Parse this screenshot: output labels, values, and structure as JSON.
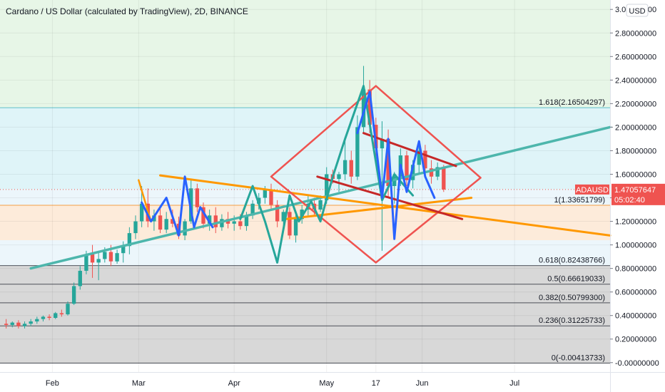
{
  "header": {
    "title": "Cardano / US Dollar (calculated by TradingView), 2D, BINANCE"
  },
  "price_scale": {
    "currency": "USD",
    "symbol": "ADAUSD",
    "last_price": "1.47057647",
    "countdown": "05:02:40",
    "last_price_value": 1.4706
  },
  "colors": {
    "up": "#26a69a",
    "down": "#ef5350",
    "blue_wave": "#2962ff",
    "teal_line": "#4db6ac",
    "orange_line": "#ff9800",
    "red_shape": "#ef5350",
    "zone_green": "#e3f4e3",
    "zone_cyan": "#d9f2f7",
    "zone_orange": "#fde7d4",
    "zone_light": "#e9f5fa",
    "zone_gray": "#d1d1d1"
  },
  "fib_levels": [
    {
      "label": "1.618(2.16504297)",
      "value": 2.165,
      "color": "#26a7b8"
    },
    {
      "label": "1(1.33651799)",
      "value": 1.3365,
      "color": "#f57c00"
    },
    {
      "label": "0.618(0.82438766)",
      "value": 0.8244,
      "color": "#131722"
    },
    {
      "label": "0.5(0.66619033)",
      "value": 0.6662,
      "color": "#131722"
    },
    {
      "label": "0.382(0.50799300)",
      "value": 0.508,
      "color": "#131722"
    },
    {
      "label": "0.236(0.31225733)",
      "value": 0.3123,
      "color": "#131722"
    },
    {
      "label": "0(-0.00413733)",
      "value": -0.0041,
      "color": "#131722"
    }
  ],
  "chart_data": {
    "type": "candlestick",
    "title": "Cardano / US Dollar (calculated by TradingView), 2D, BINANCE",
    "x_unit": "day-of-year 2021",
    "xlim": [
      15,
      213
    ],
    "ylim": [
      -0.08,
      3.08
    ],
    "y_ticks": [
      "3.00000000",
      "2.80000000",
      "2.60000000",
      "2.40000000",
      "2.20000000",
      "2.00000000",
      "1.80000000",
      "1.60000000",
      "1.40000000",
      "1.20000000",
      "1.00000000",
      "0.80000000",
      "0.60000000",
      "0.40000000",
      "0.20000000",
      "-0.00000000"
    ],
    "y_tick_values": [
      3.0,
      2.8,
      2.6,
      2.4,
      2.2,
      2.0,
      1.8,
      1.6,
      1.4,
      1.2,
      1.0,
      0.8,
      0.6,
      0.4,
      0.2,
      0.0
    ],
    "x_ticks": [
      {
        "label": "Feb",
        "x": 32
      },
      {
        "label": "Mar",
        "x": 60
      },
      {
        "label": "Apr",
        "x": 91
      },
      {
        "label": "May",
        "x": 121
      },
      {
        "label": "17",
        "x": 137
      },
      {
        "label": "Jun",
        "x": 152
      },
      {
        "label": "Jul",
        "x": 182
      }
    ],
    "candles": [
      {
        "x": 17,
        "o": 0.33,
        "h": 0.37,
        "l": 0.29,
        "c": 0.32
      },
      {
        "x": 19,
        "o": 0.32,
        "h": 0.35,
        "l": 0.3,
        "c": 0.34
      },
      {
        "x": 21,
        "o": 0.34,
        "h": 0.36,
        "l": 0.29,
        "c": 0.31
      },
      {
        "x": 23,
        "o": 0.31,
        "h": 0.35,
        "l": 0.29,
        "c": 0.33
      },
      {
        "x": 25,
        "o": 0.33,
        "h": 0.37,
        "l": 0.31,
        "c": 0.35
      },
      {
        "x": 27,
        "o": 0.35,
        "h": 0.39,
        "l": 0.33,
        "c": 0.37
      },
      {
        "x": 29,
        "o": 0.37,
        "h": 0.4,
        "l": 0.35,
        "c": 0.39
      },
      {
        "x": 31,
        "o": 0.39,
        "h": 0.41,
        "l": 0.36,
        "c": 0.38
      },
      {
        "x": 33,
        "o": 0.38,
        "h": 0.43,
        "l": 0.37,
        "c": 0.42
      },
      {
        "x": 35,
        "o": 0.42,
        "h": 0.45,
        "l": 0.39,
        "c": 0.41
      },
      {
        "x": 37,
        "o": 0.41,
        "h": 0.52,
        "l": 0.4,
        "c": 0.5
      },
      {
        "x": 39,
        "o": 0.5,
        "h": 0.68,
        "l": 0.49,
        "c": 0.65
      },
      {
        "x": 41,
        "o": 0.65,
        "h": 0.82,
        "l": 0.62,
        "c": 0.78
      },
      {
        "x": 43,
        "o": 0.78,
        "h": 0.95,
        "l": 0.75,
        "c": 0.92
      },
      {
        "x": 45,
        "o": 0.92,
        "h": 1.0,
        "l": 0.72,
        "c": 0.85
      },
      {
        "x": 47,
        "o": 0.85,
        "h": 0.95,
        "l": 0.7,
        "c": 0.88
      },
      {
        "x": 49,
        "o": 0.88,
        "h": 0.98,
        "l": 0.85,
        "c": 0.94
      },
      {
        "x": 51,
        "o": 0.94,
        "h": 1.0,
        "l": 0.82,
        "c": 0.86
      },
      {
        "x": 53,
        "o": 0.86,
        "h": 0.96,
        "l": 0.84,
        "c": 0.93
      },
      {
        "x": 55,
        "o": 0.93,
        "h": 1.03,
        "l": 0.85,
        "c": 0.99
      },
      {
        "x": 57,
        "o": 0.99,
        "h": 1.15,
        "l": 0.92,
        "c": 1.1
      },
      {
        "x": 59,
        "o": 1.1,
        "h": 1.25,
        "l": 1.05,
        "c": 1.2
      },
      {
        "x": 61,
        "o": 1.2,
        "h": 1.5,
        "l": 1.15,
        "c": 1.35
      },
      {
        "x": 63,
        "o": 1.35,
        "h": 1.48,
        "l": 1.15,
        "c": 1.2
      },
      {
        "x": 65,
        "o": 1.2,
        "h": 1.3,
        "l": 1.12,
        "c": 1.25
      },
      {
        "x": 67,
        "o": 1.25,
        "h": 1.32,
        "l": 1.1,
        "c": 1.13
      },
      {
        "x": 69,
        "o": 1.13,
        "h": 1.28,
        "l": 1.1,
        "c": 1.22
      },
      {
        "x": 71,
        "o": 1.22,
        "h": 1.3,
        "l": 1.15,
        "c": 1.18
      },
      {
        "x": 73,
        "o": 1.18,
        "h": 1.24,
        "l": 1.05,
        "c": 1.08
      },
      {
        "x": 75,
        "o": 1.08,
        "h": 1.22,
        "l": 1.04,
        "c": 1.2
      },
      {
        "x": 77,
        "o": 1.2,
        "h": 1.56,
        "l": 1.18,
        "c": 1.48
      },
      {
        "x": 79,
        "o": 1.48,
        "h": 1.52,
        "l": 1.28,
        "c": 1.32
      },
      {
        "x": 81,
        "o": 1.32,
        "h": 1.36,
        "l": 1.14,
        "c": 1.18
      },
      {
        "x": 83,
        "o": 1.18,
        "h": 1.3,
        "l": 1.12,
        "c": 1.25
      },
      {
        "x": 85,
        "o": 1.25,
        "h": 1.32,
        "l": 1.1,
        "c": 1.15
      },
      {
        "x": 87,
        "o": 1.15,
        "h": 1.26,
        "l": 1.12,
        "c": 1.22
      },
      {
        "x": 89,
        "o": 1.22,
        "h": 1.28,
        "l": 1.14,
        "c": 1.18
      },
      {
        "x": 91,
        "o": 1.18,
        "h": 1.25,
        "l": 1.12,
        "c": 1.2
      },
      {
        "x": 93,
        "o": 1.2,
        "h": 1.26,
        "l": 1.13,
        "c": 1.16
      },
      {
        "x": 95,
        "o": 1.16,
        "h": 1.28,
        "l": 1.12,
        "c": 1.25
      },
      {
        "x": 97,
        "o": 1.25,
        "h": 1.38,
        "l": 1.22,
        "c": 1.35
      },
      {
        "x": 99,
        "o": 1.35,
        "h": 1.44,
        "l": 1.3,
        "c": 1.4
      },
      {
        "x": 101,
        "o": 1.4,
        "h": 1.5,
        "l": 1.35,
        "c": 1.47
      },
      {
        "x": 103,
        "o": 1.47,
        "h": 1.52,
        "l": 1.3,
        "c": 1.34
      },
      {
        "x": 105,
        "o": 1.34,
        "h": 1.38,
        "l": 1.15,
        "c": 1.2
      },
      {
        "x": 107,
        "o": 1.2,
        "h": 1.3,
        "l": 1.12,
        "c": 1.28
      },
      {
        "x": 109,
        "o": 1.28,
        "h": 1.32,
        "l": 1.05,
        "c": 1.08
      },
      {
        "x": 111,
        "o": 1.08,
        "h": 1.28,
        "l": 1.02,
        "c": 1.22
      },
      {
        "x": 113,
        "o": 1.22,
        "h": 1.34,
        "l": 1.18,
        "c": 1.3
      },
      {
        "x": 115,
        "o": 1.3,
        "h": 1.42,
        "l": 1.25,
        "c": 1.35
      },
      {
        "x": 117,
        "o": 1.35,
        "h": 1.4,
        "l": 1.25,
        "c": 1.3
      },
      {
        "x": 119,
        "o": 1.3,
        "h": 1.42,
        "l": 1.28,
        "c": 1.38
      },
      {
        "x": 121,
        "o": 1.38,
        "h": 1.66,
        "l": 1.35,
        "c": 1.6
      },
      {
        "x": 123,
        "o": 1.6,
        "h": 1.64,
        "l": 1.52,
        "c": 1.56
      },
      {
        "x": 125,
        "o": 1.56,
        "h": 1.62,
        "l": 1.45,
        "c": 1.6
      },
      {
        "x": 127,
        "o": 1.6,
        "h": 1.9,
        "l": 1.55,
        "c": 1.72
      },
      {
        "x": 129,
        "o": 1.72,
        "h": 1.8,
        "l": 1.52,
        "c": 1.58
      },
      {
        "x": 131,
        "o": 1.58,
        "h": 2.1,
        "l": 1.55,
        "c": 2.0
      },
      {
        "x": 133,
        "o": 2.0,
        "h": 2.52,
        "l": 1.95,
        "c": 2.32
      },
      {
        "x": 135,
        "o": 2.32,
        "h": 2.4,
        "l": 1.95,
        "c": 2.02
      },
      {
        "x": 137,
        "o": 2.02,
        "h": 2.08,
        "l": 1.72,
        "c": 1.82
      },
      {
        "x": 139,
        "o": 1.82,
        "h": 2.05,
        "l": 0.95,
        "c": 1.9
      },
      {
        "x": 141,
        "o": 1.9,
        "h": 1.98,
        "l": 1.4,
        "c": 1.5
      },
      {
        "x": 143,
        "o": 1.5,
        "h": 1.62,
        "l": 1.35,
        "c": 1.58
      },
      {
        "x": 145,
        "o": 1.58,
        "h": 1.82,
        "l": 1.5,
        "c": 1.76
      },
      {
        "x": 147,
        "o": 1.76,
        "h": 1.8,
        "l": 1.5,
        "c": 1.55
      },
      {
        "x": 149,
        "o": 1.55,
        "h": 1.72,
        "l": 1.48,
        "c": 1.68
      },
      {
        "x": 151,
        "o": 1.68,
        "h": 1.88,
        "l": 1.6,
        "c": 1.8
      },
      {
        "x": 153,
        "o": 1.8,
        "h": 1.85,
        "l": 1.6,
        "c": 1.65
      },
      {
        "x": 155,
        "o": 1.65,
        "h": 1.72,
        "l": 1.52,
        "c": 1.58
      },
      {
        "x": 157,
        "o": 1.58,
        "h": 1.7,
        "l": 1.55,
        "c": 1.66
      },
      {
        "x": 159,
        "o": 1.66,
        "h": 1.68,
        "l": 1.45,
        "c": 1.47
      }
    ],
    "drawings": {
      "teal_trendline": [
        [
          25,
          0.8
        ],
        [
          213,
          2.0
        ]
      ],
      "orange_triangle_upper": [
        [
          67,
          1.59
        ],
        [
          213,
          1.08
        ]
      ],
      "orange_triangle_lower": [
        [
          108,
          1.22
        ],
        [
          168,
          1.4
        ]
      ],
      "orange_left_wave": [
        [
          60,
          1.55
        ],
        [
          64,
          1.2
        ]
      ],
      "red_channel_upper": [
        [
          133,
          1.95
        ],
        [
          163,
          1.67
        ]
      ],
      "red_channel_lower": [
        [
          118,
          1.58
        ],
        [
          165,
          1.22
        ]
      ],
      "red_diamond": [
        [
          137,
          2.35
        ],
        [
          171,
          1.57
        ],
        [
          137,
          0.85
        ],
        [
          103,
          1.58
        ]
      ],
      "blue_wave": [
        [
          61,
          1.36
        ],
        [
          64,
          1.2
        ],
        [
          69,
          1.4
        ],
        [
          73,
          1.08
        ],
        [
          75,
          1.58
        ],
        [
          78,
          1.15
        ],
        [
          80,
          1.32
        ],
        [
          84,
          1.15
        ]
      ],
      "blue_wave_2": [
        [
          131,
          1.95
        ],
        [
          135,
          2.3
        ],
        [
          139,
          1.4
        ],
        [
          141,
          1.9
        ],
        [
          143,
          1.05
        ],
        [
          145,
          1.68
        ],
        [
          147,
          1.45
        ],
        [
          151,
          1.88
        ],
        [
          153,
          1.58
        ],
        [
          156,
          1.4
        ]
      ],
      "teal_wave": [
        [
          93,
          1.22
        ],
        [
          97,
          1.5
        ],
        [
          101,
          1.2
        ],
        [
          105,
          0.85
        ],
        [
          109,
          1.42
        ],
        [
          112,
          1.2
        ],
        [
          116,
          1.37
        ],
        [
          119,
          1.2
        ],
        [
          123,
          1.58
        ],
        [
          127,
          1.9
        ],
        [
          133,
          2.35
        ],
        [
          139,
          1.38
        ],
        [
          143,
          1.6
        ],
        [
          149,
          1.42
        ]
      ]
    }
  }
}
